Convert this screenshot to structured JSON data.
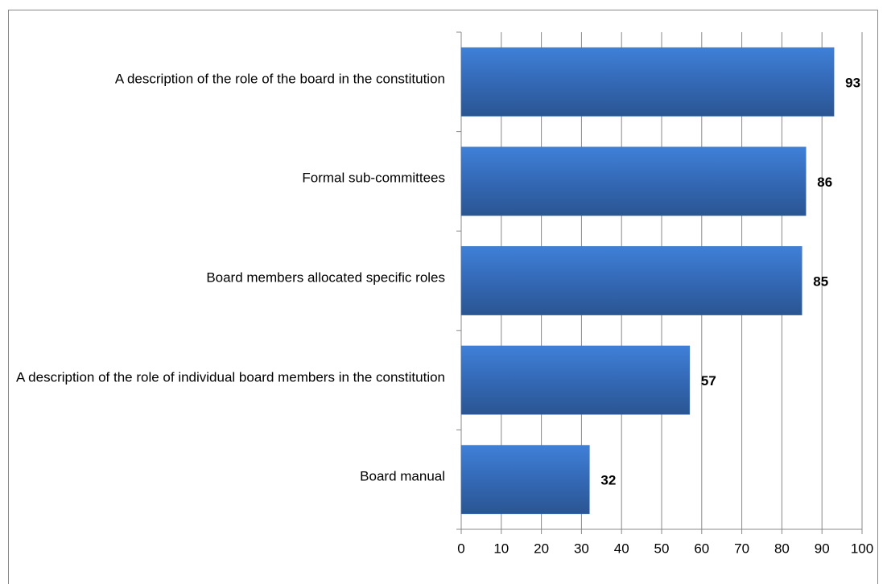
{
  "chart_data": {
    "type": "bar",
    "orientation": "horizontal",
    "categories": [
      "A description of the role of the board  in the constitution",
      "Formal sub-committees",
      "Board members allocated specific roles",
      "A description of the role of individual board members in the constitution",
      "Board manual"
    ],
    "values": [
      93,
      86,
      85,
      57,
      32
    ],
    "color": "#3a73c0",
    "xlim": [
      0,
      100
    ],
    "xticks": [
      0,
      10,
      20,
      30,
      40,
      50,
      60,
      70,
      80,
      90,
      100
    ],
    "grid": true
  }
}
